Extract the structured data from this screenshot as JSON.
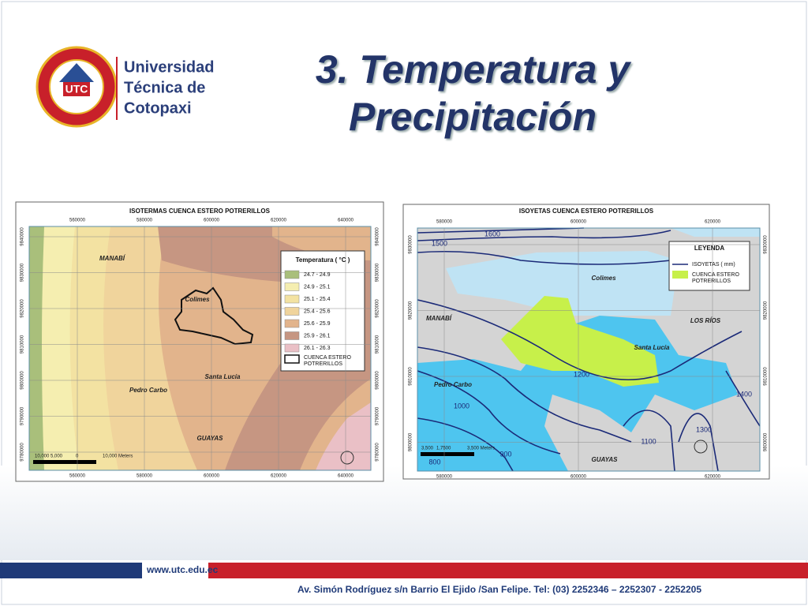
{
  "header": {
    "university": [
      "Universidad",
      "Técnica de",
      "Cotopaxi"
    ],
    "logo_text": "UTC",
    "title": [
      "3. Temperatura y",
      "Precipitación"
    ]
  },
  "maps": [
    {
      "title": "ISOTERMAS CUENCA ESTERO POTRERILLOS",
      "x_ticks": [
        "560000",
        "580000",
        "600000",
        "620000",
        "640000"
      ],
      "y_ticks": [
        "9840000",
        "9830000",
        "9820000",
        "9810000",
        "9800000",
        "9790000",
        "9780000"
      ],
      "legend_title": "Temperatura ( °C )",
      "legend_items": [
        "24.7 - 24.9",
        "24.9 - 25.1",
        "25.1 - 25.4",
        "25.4 - 25.6",
        "25.6 - 25.9",
        "25.9 - 26.1",
        "26.1 - 26.3"
      ],
      "boundary_label": [
        "CUENCA ESTERO",
        "POTRERILLOS"
      ],
      "places": [
        "MANABÍ",
        "Colimes",
        "Santa Lucía",
        "Pedro Carbo",
        "GUAYAS"
      ],
      "scale": [
        "10,000",
        "5,000",
        "0",
        "10,000 Meters"
      ]
    },
    {
      "title": "ISOYETAS CUENCA ESTERO POTRERILLOS",
      "x_ticks": [
        "580000",
        "600000",
        "620000"
      ],
      "y_ticks": [
        "9830000",
        "9820000",
        "9810000",
        "9800000"
      ],
      "legend_title": "LEYENDA",
      "legend_items": [
        "ISOYETAS ( mm)"
      ],
      "boundary_label": [
        "CUENCA ESTERO",
        "POTRERILLOS"
      ],
      "places": [
        "MANABÍ",
        "LOS RÍOS",
        "Colimes",
        "Santa Lucía",
        "Pedro Carbo",
        "GUAYAS"
      ],
      "contour_labels": [
        "1600",
        "1500",
        "1200",
        "1000",
        "900",
        "1100",
        "1300",
        "1400",
        "800"
      ],
      "scale": [
        "3,500",
        "1,750",
        "0",
        "3,500 Meters"
      ]
    }
  ],
  "footer": {
    "website": "www.utc.edu.ec",
    "address": "Av. Simón Rodríguez s/n Barrio El Ejido /San Felipe.   Tel: (03) 2252346 – 2252307 - 2252205"
  }
}
